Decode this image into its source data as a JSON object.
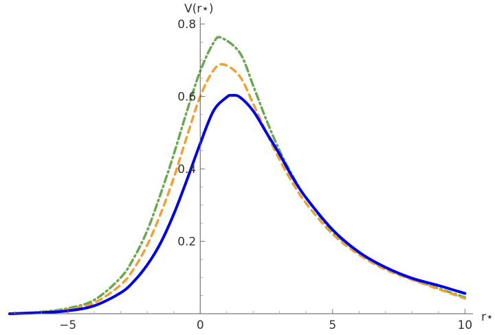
{
  "chart_data": {
    "type": "line",
    "title": "",
    "xlabel": "r⋆",
    "ylabel": "V(r⋆)",
    "xlim": [
      -7.2,
      10.2
    ],
    "ylim": [
      0,
      0.8
    ],
    "x_ticks": [
      -5,
      0,
      5,
      10
    ],
    "x_tick_labels": [
      "−5",
      "0",
      "5",
      "10"
    ],
    "y_ticks": [
      0.2,
      0.4,
      0.6,
      0.8
    ],
    "y_tick_labels": [
      "0.2",
      "0.4",
      "0.6",
      "0.8"
    ],
    "grid": false,
    "legend": "none",
    "series": [
      {
        "style": "solid",
        "color": "#0000e6",
        "x": [
          -7.2,
          -6,
          -5,
          -4,
          -3,
          -2.5,
          -2,
          -1.5,
          -1,
          -0.5,
          0,
          0.5,
          1,
          1.2,
          1.5,
          2,
          2.5,
          3,
          3.5,
          4,
          5,
          6,
          7,
          8,
          9,
          10
        ],
        "y": [
          0.0,
          0.003,
          0.008,
          0.022,
          0.058,
          0.09,
          0.135,
          0.195,
          0.275,
          0.37,
          0.47,
          0.56,
          0.598,
          0.603,
          0.598,
          0.56,
          0.5,
          0.44,
          0.375,
          0.32,
          0.232,
          0.17,
          0.128,
          0.098,
          0.078,
          0.056
        ]
      },
      {
        "style": "dashed",
        "color": "#f0a030",
        "x": [
          -7.2,
          -6,
          -5,
          -4,
          -3,
          -2.5,
          -2,
          -1.5,
          -1,
          -0.5,
          0,
          0.5,
          0.9,
          1.5,
          2,
          2.5,
          3,
          3.5,
          4,
          5,
          6,
          7,
          8,
          9,
          10
        ],
        "y": [
          0.0,
          0.004,
          0.012,
          0.03,
          0.08,
          0.125,
          0.19,
          0.275,
          0.375,
          0.49,
          0.6,
          0.672,
          0.688,
          0.655,
          0.58,
          0.5,
          0.425,
          0.36,
          0.305,
          0.22,
          0.163,
          0.122,
          0.094,
          0.068,
          0.042
        ]
      },
      {
        "style": "dot-dash",
        "color": "#6aa84f",
        "x": [
          -7.2,
          -6,
          -5,
          -4,
          -3,
          -2.5,
          -2,
          -1.5,
          -1,
          -0.5,
          0,
          0.5,
          0.8,
          1.5,
          2,
          2.5,
          3,
          3.5,
          4,
          5,
          6,
          7,
          8,
          9,
          10
        ],
        "y": [
          0.0,
          0.005,
          0.015,
          0.038,
          0.1,
          0.155,
          0.23,
          0.33,
          0.44,
          0.56,
          0.67,
          0.748,
          0.762,
          0.72,
          0.63,
          0.535,
          0.45,
          0.38,
          0.32,
          0.228,
          0.168,
          0.125,
          0.096,
          0.07,
          0.045
        ]
      }
    ]
  }
}
